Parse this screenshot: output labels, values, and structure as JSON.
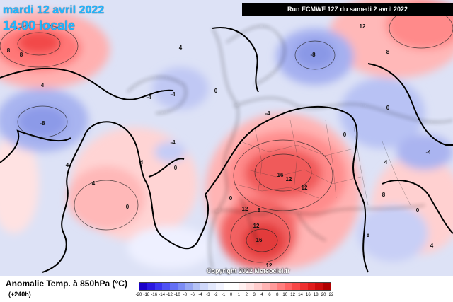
{
  "header": {
    "date": "mardi 12 avril 2022",
    "time": "14:00 locale",
    "run": "Run ECMWF 12Z du samedi 2 avril 2022",
    "copyright": "Copyright 2022 Meteociel.fr"
  },
  "legend": {
    "title": "Anomalie Temp. à 850hPa (°C)",
    "lead_time": "(+240h)",
    "ticks": [
      "-20",
      "-18",
      "-16",
      "-14",
      "-12",
      "-10",
      "-8",
      "-6",
      "-4",
      "-3",
      "-2",
      "-1",
      "0",
      "1",
      "2",
      "3",
      "4",
      "6",
      "8",
      "10",
      "12",
      "14",
      "16",
      "18",
      "20",
      "22"
    ],
    "colors": [
      "#1a00c8",
      "#2a18e0",
      "#3b35f0",
      "#4f52f4",
      "#6470f4",
      "#7c8cf4",
      "#98a8f4",
      "#b4c2f6",
      "#cfd8fa",
      "#e2e8fc",
      "#f2f4ff",
      "#ffffff",
      "#ffffff",
      "#fff0f0",
      "#ffe0e0",
      "#ffcccc",
      "#ffb4b4",
      "#ff9a9a",
      "#ff7f7f",
      "#ff6464",
      "#f84848",
      "#ee3030",
      "#e01c1c",
      "#cc0c0c",
      "#b00000"
    ]
  },
  "contour_labels": [
    {
      "text": "8"
    },
    {
      "text": "-8"
    },
    {
      "text": "12"
    },
    {
      "text": "8"
    },
    {
      "text": "4"
    },
    {
      "text": "0"
    },
    {
      "text": "-4"
    },
    {
      "text": "-8"
    },
    {
      "text": "4"
    },
    {
      "text": "0"
    },
    {
      "text": "4"
    },
    {
      "text": "8"
    },
    {
      "text": "-4"
    },
    {
      "text": "0"
    },
    {
      "text": "-4"
    },
    {
      "text": "0"
    },
    {
      "text": "16"
    },
    {
      "text": "12"
    },
    {
      "text": "12"
    },
    {
      "text": "8"
    },
    {
      "text": "12"
    },
    {
      "text": "16"
    },
    {
      "text": "12"
    },
    {
      "text": "4"
    },
    {
      "text": "0"
    },
    {
      "text": "8"
    },
    {
      "text": "-4"
    },
    {
      "text": "4"
    },
    {
      "text": "0"
    },
    {
      "text": "4"
    },
    {
      "text": "8"
    },
    {
      "text": "0"
    },
    {
      "text": "-4"
    },
    {
      "text": "4"
    },
    {
      "text": "12"
    }
  ]
}
